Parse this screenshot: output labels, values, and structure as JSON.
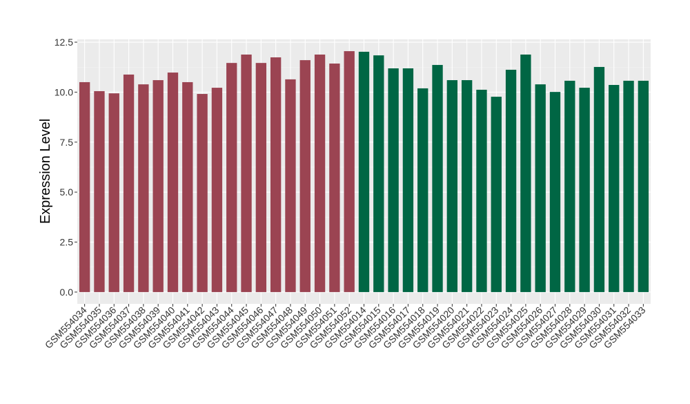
{
  "chart_data": {
    "type": "bar",
    "ylabel": "Expression Level",
    "categories": [
      "GSM554034",
      "GSM554035",
      "GSM554036",
      "GSM554037",
      "GSM554038",
      "GSM554039",
      "GSM554040",
      "GSM554041",
      "GSM554042",
      "GSM554043",
      "GSM554044",
      "GSM554045",
      "GSM554046",
      "GSM554047",
      "GSM554048",
      "GSM554049",
      "GSM554050",
      "GSM554051",
      "GSM554052",
      "GSM554014",
      "GSM554015",
      "GSM554016",
      "GSM554017",
      "GSM554018",
      "GSM554019",
      "GSM554020",
      "GSM554021",
      "GSM554022",
      "GSM554023",
      "GSM554024",
      "GSM554025",
      "GSM554026",
      "GSM554027",
      "GSM554028",
      "GSM554029",
      "GSM554030",
      "GSM554031",
      "GSM554032",
      "GSM554033"
    ],
    "values": [
      10.5,
      10.05,
      9.94,
      10.88,
      10.39,
      10.6,
      10.98,
      10.5,
      9.91,
      10.22,
      11.46,
      11.88,
      11.46,
      11.74,
      10.64,
      11.6,
      11.88,
      11.43,
      12.05,
      12.02,
      11.84,
      11.19,
      11.19,
      10.19,
      11.36,
      10.6,
      10.6,
      10.12,
      9.77,
      11.12,
      11.88,
      10.39,
      10.01,
      10.57,
      10.22,
      11.26,
      10.36,
      10.57,
      10.57
    ],
    "colors": [
      "#9b4452",
      "#9b4452",
      "#9b4452",
      "#9b4452",
      "#9b4452",
      "#9b4452",
      "#9b4452",
      "#9b4452",
      "#9b4452",
      "#9b4452",
      "#9b4452",
      "#9b4452",
      "#9b4452",
      "#9b4452",
      "#9b4452",
      "#9b4452",
      "#9b4452",
      "#9b4452",
      "#9b4452",
      "#006644",
      "#006644",
      "#006644",
      "#006644",
      "#006644",
      "#006644",
      "#006644",
      "#006644",
      "#006644",
      "#006644",
      "#006644",
      "#006644",
      "#006644",
      "#006644",
      "#006644",
      "#006644",
      "#006644",
      "#006644",
      "#006644",
      "#006644"
    ],
    "ylim": [
      -0.59,
      12.64
    ],
    "yticks": [
      {
        "value": 0,
        "label": "0.0"
      },
      {
        "value": 2.5,
        "label": "2.5"
      },
      {
        "value": 5,
        "label": "5.0"
      },
      {
        "value": 7.5,
        "label": "7.5"
      },
      {
        "value": 10,
        "label": "10.0"
      },
      {
        "value": 12.5,
        "label": "12.5"
      }
    ],
    "grid": true
  }
}
